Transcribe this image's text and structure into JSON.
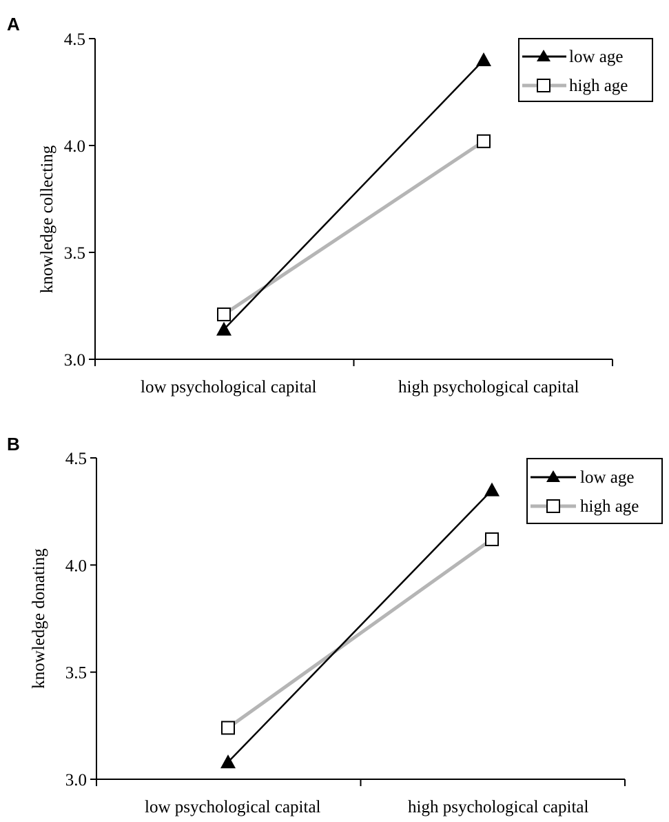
{
  "chart_data": [
    {
      "panel": "A",
      "type": "line",
      "title": "",
      "xlabel": "",
      "ylabel": "knowledge collecting",
      "categories": [
        "low psychological capital",
        "high psychological capital"
      ],
      "ylim": [
        3.0,
        4.5
      ],
      "yticks": [
        "3.0",
        "3.5",
        "4.0",
        "4.5"
      ],
      "grid": false,
      "legend_position": "top-right",
      "series": [
        {
          "name": "low age",
          "marker": "filled-triangle",
          "color": "#000000",
          "values": [
            3.14,
            4.4
          ]
        },
        {
          "name": "high age",
          "marker": "open-square",
          "color": "#b5b5b5",
          "values": [
            3.21,
            4.02
          ]
        }
      ]
    },
    {
      "panel": "B",
      "type": "line",
      "title": "",
      "xlabel": "",
      "ylabel": "knowledge donating",
      "categories": [
        "low psychological capital",
        "high psychological capital"
      ],
      "ylim": [
        3.0,
        4.5
      ],
      "yticks": [
        "3.0",
        "3.5",
        "4.0",
        "4.5"
      ],
      "grid": false,
      "legend_position": "top-right",
      "series": [
        {
          "name": "low age",
          "marker": "filled-triangle",
          "color": "#000000",
          "values": [
            3.08,
            4.35
          ]
        },
        {
          "name": "high age",
          "marker": "open-square",
          "color": "#b5b5b5",
          "values": [
            3.24,
            4.12
          ]
        }
      ]
    }
  ]
}
